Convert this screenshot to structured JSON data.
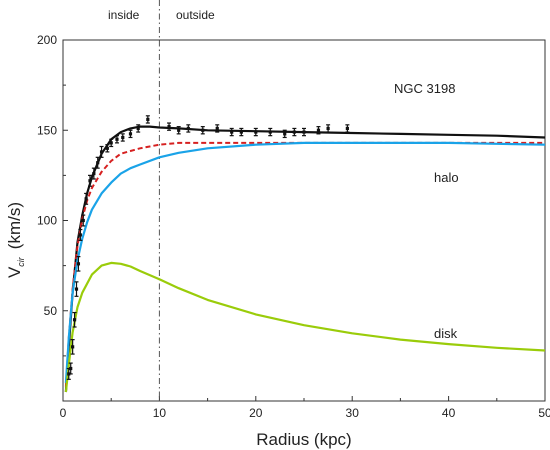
{
  "chart_data": {
    "type": "line",
    "title": "",
    "xlabel": "Radius  (kpc)",
    "ylabel_main": "V",
    "ylabel_sub": "cir",
    "ylabel_unit": "(km/s)",
    "xlim": [
      0,
      50
    ],
    "ylim": [
      0,
      200
    ],
    "x_ticks": [
      0,
      10,
      20,
      30,
      40,
      50
    ],
    "y_ticks": [
      50,
      100,
      150,
      200
    ],
    "grid": false,
    "divider_x": 10,
    "region_labels": {
      "left": "inside",
      "right": "outside"
    },
    "annotations": {
      "galaxy": "NGC 3198",
      "halo": "halo",
      "disk": "disk"
    },
    "series": [
      {
        "key": "total",
        "color": "#111111",
        "style": "solid",
        "x": [
          0.3,
          0.6,
          1,
          1.5,
          2,
          2.5,
          3,
          4,
          5,
          6,
          7,
          8,
          9,
          10,
          12,
          15,
          20,
          25,
          30,
          35,
          40,
          45,
          50
        ],
        "y": [
          5,
          30,
          60,
          88,
          103,
          115,
          124,
          137,
          145,
          149,
          151,
          152,
          152,
          151.5,
          151,
          150,
          149.5,
          149,
          148.5,
          148,
          147.5,
          147,
          146
        ]
      },
      {
        "key": "halo_total",
        "color": "#d62020",
        "style": "dashed",
        "x": [
          0.3,
          0.6,
          1,
          1.5,
          2,
          2.5,
          3,
          4,
          5,
          6,
          8,
          10,
          12,
          15,
          20,
          25,
          30,
          35,
          40,
          45,
          50
        ],
        "y": [
          8,
          35,
          62,
          86,
          101,
          111,
          118,
          127,
          133,
          137,
          140,
          142,
          143,
          143,
          143,
          143,
          143,
          143,
          143,
          143,
          143
        ]
      },
      {
        "key": "halo",
        "color": "#1aa3e8",
        "style": "solid",
        "x": [
          0.3,
          0.6,
          1,
          1.5,
          2,
          2.5,
          3,
          4,
          5,
          6,
          7,
          8,
          10,
          12,
          15,
          20,
          25,
          30,
          35,
          40,
          45,
          50
        ],
        "y": [
          10,
          35,
          60,
          78,
          90,
          99,
          106,
          115,
          121,
          126,
          129,
          131,
          135,
          137.5,
          140,
          142,
          143,
          143,
          143,
          143,
          142.5,
          142
        ]
      },
      {
        "key": "disk",
        "color": "#9acc0a",
        "style": "solid",
        "x": [
          0.3,
          0.6,
          1,
          1.5,
          2,
          3,
          4,
          5,
          6,
          7,
          8,
          10,
          12,
          15,
          20,
          25,
          30,
          35,
          40,
          45,
          50
        ],
        "y": [
          5,
          20,
          38,
          52,
          60,
          70,
          75,
          76.5,
          76,
          74.5,
          72,
          67.5,
          62.5,
          56,
          48,
          42,
          37.5,
          34,
          31.5,
          29.5,
          28
        ]
      }
    ],
    "observed": {
      "color": "#111111",
      "x": [
        0.6,
        0.8,
        1.0,
        1.2,
        1.4,
        1.6,
        1.8,
        2.1,
        2.4,
        2.8,
        3.2,
        3.6,
        4.0,
        4.6,
        5.0,
        5.6,
        6.2,
        7.0,
        7.8,
        8.8,
        11,
        12,
        13,
        14.5,
        16,
        17.5,
        18.5,
        20,
        21.5,
        23,
        24,
        25,
        26.5,
        27.5,
        29.5
      ],
      "y": [
        15,
        18,
        30,
        45,
        62,
        76,
        92,
        100,
        112,
        122,
        126,
        132,
        138,
        140,
        143,
        145,
        146,
        148,
        151,
        156,
        152,
        150,
        151,
        150,
        151,
        149,
        149,
        149,
        149,
        148,
        149,
        149,
        150,
        151,
        151
      ],
      "err": [
        3,
        3,
        4,
        4,
        4,
        4,
        3,
        3,
        3,
        3,
        3,
        3,
        3,
        2,
        2,
        2,
        2,
        2,
        2,
        2,
        2,
        2,
        2,
        2,
        2,
        2,
        2,
        2,
        2,
        2,
        2,
        2,
        2,
        2,
        2
      ]
    }
  }
}
